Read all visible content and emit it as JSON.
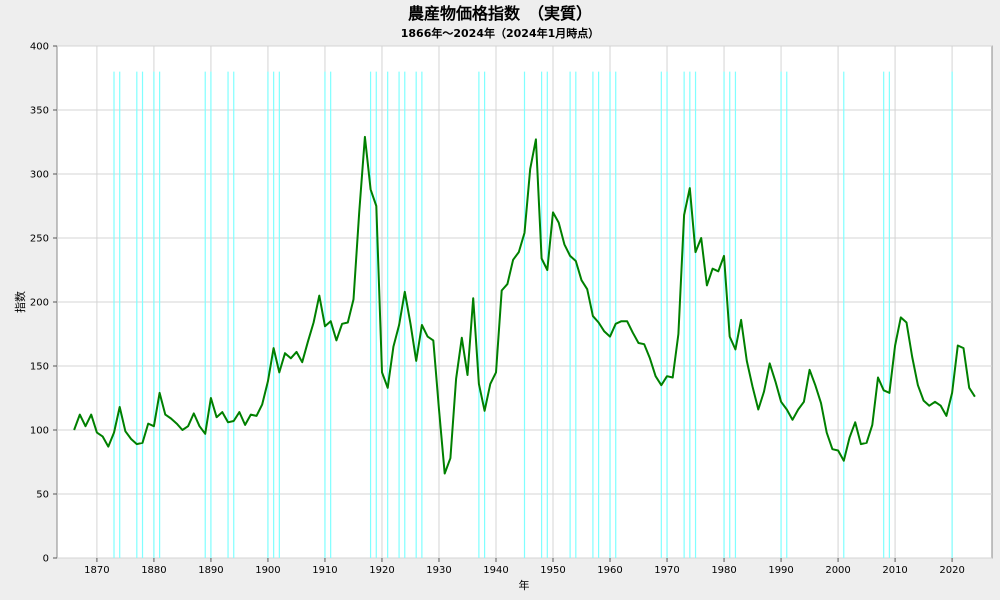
{
  "chart_data": {
    "type": "line",
    "title": "農産物価格指数　（実質）",
    "subtitle": "1866年～2024年（2024年1月時点）",
    "xlabel": "年",
    "ylabel": "指数",
    "xlim": [
      1863,
      2027
    ],
    "ylim": [
      0,
      400
    ],
    "xticks": [
      1870,
      1880,
      1890,
      1900,
      1910,
      1920,
      1930,
      1940,
      1950,
      1960,
      1970,
      1980,
      1990,
      2000,
      2010,
      2020
    ],
    "yticks": [
      0,
      50,
      100,
      150,
      200,
      250,
      300,
      350,
      400
    ],
    "grid": true,
    "legend": "none",
    "line_color": "#008000",
    "marker_color": "#80ffff",
    "markers": [
      1873,
      1874,
      1877,
      1878,
      1880,
      1881,
      1889,
      1890,
      1893,
      1894,
      1900,
      1901,
      1902,
      1910,
      1911,
      1918,
      1919,
      1921,
      1923,
      1924,
      1926,
      1927,
      1937,
      1938,
      1945,
      1948,
      1949,
      1953,
      1954,
      1957,
      1958,
      1960,
      1961,
      1969,
      1970,
      1973,
      1974,
      1975,
      1980,
      1981,
      1982,
      1990,
      1991,
      2001,
      2008,
      2009,
      2020
    ],
    "series": [
      {
        "x": [
          1866,
          1867,
          1868,
          1869,
          1870,
          1871,
          1872,
          1873,
          1874,
          1875,
          1876,
          1877,
          1878,
          1879,
          1880,
          1881,
          1882,
          1883,
          1884,
          1885,
          1886,
          1887,
          1888,
          1889,
          1890,
          1891,
          1892,
          1893,
          1894,
          1895,
          1896,
          1897,
          1898,
          1899,
          1900,
          1901,
          1902,
          1903,
          1904,
          1905,
          1906,
          1907,
          1908,
          1909,
          1910,
          1911,
          1912,
          1913,
          1914,
          1915,
          1916,
          1917,
          1918,
          1919,
          1920,
          1921,
          1922,
          1923,
          1924,
          1925,
          1926,
          1927,
          1928,
          1929,
          1930,
          1931,
          1932,
          1933,
          1934,
          1935,
          1936,
          1937,
          1938,
          1939,
          1940,
          1941,
          1942,
          1943,
          1944,
          1945,
          1946,
          1947,
          1948,
          1949,
          1950,
          1951,
          1952,
          1953,
          1954,
          1955,
          1956,
          1957,
          1958,
          1959,
          1960,
          1961,
          1962,
          1963,
          1964,
          1965,
          1966,
          1967,
          1968,
          1969,
          1970,
          1971,
          1972,
          1973,
          1974,
          1975,
          1976,
          1977,
          1978,
          1979,
          1980,
          1981,
          1982,
          1983,
          1984,
          1985,
          1986,
          1987,
          1988,
          1989,
          1990,
          1991,
          1992,
          1993,
          1994,
          1995,
          1996,
          1997,
          1998,
          1999,
          2000,
          2001,
          2002,
          2003,
          2004,
          2005,
          2006,
          2007,
          2008,
          2009,
          2010,
          2011,
          2012,
          2013,
          2014,
          2015,
          2016,
          2017,
          2018,
          2019,
          2020,
          2021,
          2022,
          2023,
          2024
        ],
        "values": [
          100,
          112,
          103,
          112,
          98,
          95,
          87,
          98,
          118,
          99,
          93,
          89,
          90,
          105,
          103,
          129,
          112,
          109,
          105,
          100,
          103,
          113,
          103,
          97,
          125,
          110,
          114,
          106,
          107,
          114,
          104,
          112,
          111,
          120,
          138,
          164,
          145,
          160,
          156,
          161,
          153,
          169,
          184,
          205,
          181,
          185,
          170,
          183,
          184,
          202,
          270,
          329,
          288,
          275,
          145,
          133,
          165,
          182,
          208,
          183,
          154,
          182,
          173,
          170,
          116,
          66,
          78,
          140,
          172,
          143,
          203,
          136,
          115,
          136,
          145,
          209,
          214,
          233,
          239,
          254,
          304,
          327,
          234,
          225,
          270,
          262,
          245,
          236,
          232,
          217,
          210,
          189,
          184,
          177,
          173,
          183,
          185,
          185,
          176,
          168,
          167,
          156,
          142,
          135,
          142,
          141,
          175,
          268,
          289,
          239,
          250,
          213,
          226,
          224,
          236,
          173,
          163,
          186,
          154,
          134,
          116,
          130,
          152,
          138,
          122,
          116,
          108,
          116,
          122,
          147,
          135,
          121,
          98,
          85,
          84,
          76,
          94,
          106,
          89,
          90,
          104,
          141,
          131,
          129,
          166,
          188,
          184,
          157,
          135,
          123,
          119,
          122,
          119,
          111,
          129,
          166,
          164,
          133,
          126
        ]
      }
    ]
  }
}
